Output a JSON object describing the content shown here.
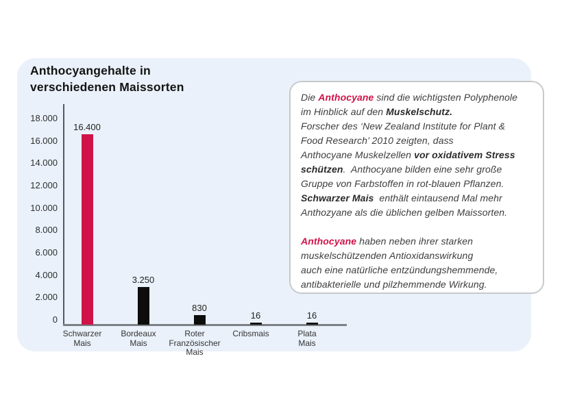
{
  "page": {
    "background": "#ffffff"
  },
  "panel": {
    "background": "#eaf1fa"
  },
  "title": {
    "line1": "Anthocyangehalte in",
    "line2": "verschiedenen Maissorten"
  },
  "chart_data": {
    "type": "bar",
    "title": "Anthocyangehalte in verschiedenen Maissorten",
    "categories": [
      "Schwarzer Mais",
      "Bordeaux Mais",
      "Roter Französischer Mais",
      "Cribsmais",
      "Plata Mais"
    ],
    "category_label_lines": [
      [
        "Schwarzer",
        "Mais"
      ],
      [
        "Bordeaux",
        "Mais"
      ],
      [
        "Roter",
        "Französischer",
        "Mais"
      ],
      [
        "Cribsmais"
      ],
      [
        "Plata",
        "Mais"
      ]
    ],
    "values": [
      16400,
      3250,
      830,
      16,
      16
    ],
    "value_labels": [
      "16.400",
      "3.250",
      "830",
      "16",
      "16"
    ],
    "bar_colors": [
      "#d01349",
      "#0d0d0d",
      "#0d0d0d",
      "#0d0d0d",
      "#0d0d0d"
    ],
    "xlabel": "",
    "ylabel": "",
    "ylim": [
      0,
      18000
    ],
    "ytick_values": [
      0,
      2000,
      4000,
      6000,
      8000,
      10000,
      12000,
      14000,
      16000,
      18000
    ],
    "ytick_labels": [
      "0",
      "2.000",
      "4.000",
      "6.000",
      "8.000",
      "10.000",
      "12.000",
      "14.000",
      "16.000",
      "18.000"
    ],
    "grid": "off",
    "legend": "none",
    "accent_color": "#d01349"
  },
  "infobox": {
    "background": "#ffffff",
    "border_color": "#c7c9cb",
    "accent_color": "#d01349",
    "text_color": "#3d3d3d",
    "paragraphs": [
      [
        {
          "t": "Die "
        },
        {
          "t": "Anthocyane",
          "s": "pink"
        },
        {
          "t": " sind die wichtigsten Polyphenole"
        },
        {
          "br": true
        },
        {
          "t": "im Hinblick auf den "
        },
        {
          "t": "Muskelschutz.",
          "s": "bold"
        },
        {
          "br": true
        },
        {
          "t": "Forscher des ‘New Zealand Institute for Plant &"
        },
        {
          "br": true
        },
        {
          "t": "Food Research’ 2010 zeigten, dass"
        },
        {
          "br": true
        },
        {
          "t": "Anthocyane Muskelzellen "
        },
        {
          "t": "vor oxidativem Stress",
          "s": "bold"
        },
        {
          "br": true
        },
        {
          "t": "schützen",
          "s": "bold"
        },
        {
          "t": ".  Anthocyane bilden eine sehr große"
        },
        {
          "br": true
        },
        {
          "t": "Gruppe von Farbstoffen in rot-blauen Pflanzen."
        },
        {
          "br": true
        },
        {
          "t": "Schwarzer Mais",
          "s": "bold"
        },
        {
          "t": "  enthält eintausend Mal mehr"
        },
        {
          "br": true
        },
        {
          "t": "Anthozyane als die üblichen gelben Maissorten."
        }
      ],
      [
        {
          "t": "Anthocyane",
          "s": "pink"
        },
        {
          "t": " haben neben ihrer starken"
        },
        {
          "br": true
        },
        {
          "t": "muskelschützenden Antioxidanswirkung"
        },
        {
          "br": true
        },
        {
          "t": "auch eine natürliche entzündungshemmende,"
        },
        {
          "br": true
        },
        {
          "t": "antibakterielle und pilzhemmende Wirkung."
        }
      ]
    ]
  }
}
